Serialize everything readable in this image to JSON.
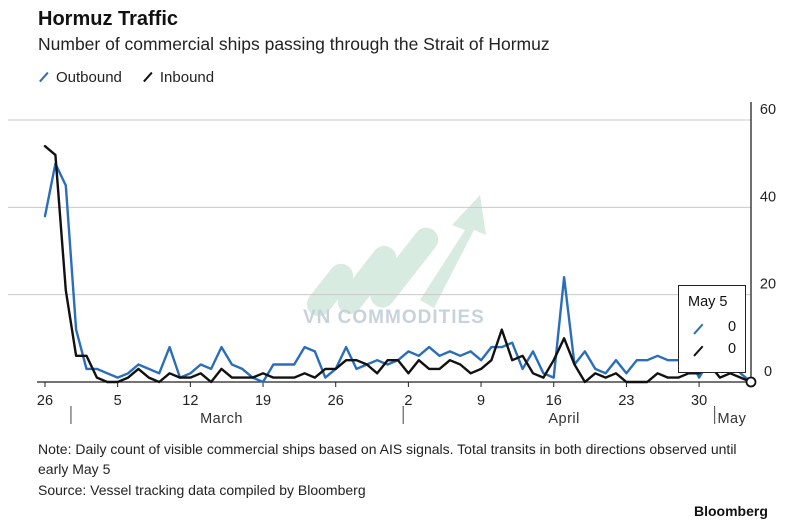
{
  "header": {
    "title": "Hormuz Traffic",
    "subtitle": "Number of commercial ships passing through the Strait of Hormuz"
  },
  "legend": [
    {
      "label": "Outbound",
      "color": "#2a6ebb"
    },
    {
      "label": "Inbound",
      "color": "#111111"
    }
  ],
  "tooltip": {
    "date": "May 5",
    "outbound_value": "0",
    "inbound_value": "0"
  },
  "footer": {
    "note": "Note: Daily count of visible commercial ships based on AIS signals. Total transits in both directions observed until early May 5",
    "source": "Source: Vessel tracking data compiled by Bloomberg",
    "brand": "Bloomberg"
  },
  "watermark": {
    "text": "VN COMMODITIES"
  },
  "chart_data": {
    "type": "line",
    "title": "Hormuz Traffic",
    "subtitle": "Number of commercial ships passing through the Strait of Hormuz",
    "x_start": "2026-02-26",
    "x_end": "2026-05-05",
    "ylim": [
      0,
      60
    ],
    "y_ticks": [
      0,
      20,
      40,
      60
    ],
    "y_axis_side": "right",
    "grid": "horizontal",
    "legend_position": "top-left",
    "x_ticks": [
      {
        "date": "2026-02-26",
        "label": "26"
      },
      {
        "date": "2026-03-05",
        "label": "5"
      },
      {
        "date": "2026-03-12",
        "label": "12"
      },
      {
        "date": "2026-03-19",
        "label": "19"
      },
      {
        "date": "2026-03-26",
        "label": "26"
      },
      {
        "date": "2026-04-02",
        "label": "2"
      },
      {
        "date": "2026-04-09",
        "label": "9"
      },
      {
        "date": "2026-04-16",
        "label": "16"
      },
      {
        "date": "2026-04-23",
        "label": "23"
      },
      {
        "date": "2026-04-30",
        "label": "30"
      }
    ],
    "month_labels": [
      {
        "date": "2026-03-15",
        "label": "March"
      },
      {
        "date": "2026-04-17",
        "label": "April"
      },
      {
        "date": "2026-05-03",
        "label": "May"
      }
    ],
    "month_separators": [
      "2026-02-28",
      "2026-04-01",
      "2026-05-01"
    ],
    "series": [
      {
        "name": "Outbound",
        "color": "#2a6ebb",
        "x": [
          "2026-02-26",
          "2026-02-27",
          "2026-02-28",
          "2026-03-01",
          "2026-03-02",
          "2026-03-03",
          "2026-03-04",
          "2026-03-05",
          "2026-03-06",
          "2026-03-07",
          "2026-03-08",
          "2026-03-09",
          "2026-03-10",
          "2026-03-11",
          "2026-03-12",
          "2026-03-13",
          "2026-03-14",
          "2026-03-15",
          "2026-03-16",
          "2026-03-17",
          "2026-03-18",
          "2026-03-19",
          "2026-03-20",
          "2026-03-21",
          "2026-03-22",
          "2026-03-23",
          "2026-03-24",
          "2026-03-25",
          "2026-03-26",
          "2026-03-27",
          "2026-03-28",
          "2026-03-29",
          "2026-03-30",
          "2026-03-31",
          "2026-04-01",
          "2026-04-02",
          "2026-04-03",
          "2026-04-04",
          "2026-04-05",
          "2026-04-06",
          "2026-04-07",
          "2026-04-08",
          "2026-04-09",
          "2026-04-10",
          "2026-04-11",
          "2026-04-12",
          "2026-04-13",
          "2026-04-14",
          "2026-04-15",
          "2026-04-16",
          "2026-04-17",
          "2026-04-18",
          "2026-04-19",
          "2026-04-20",
          "2026-04-21",
          "2026-04-22",
          "2026-04-23",
          "2026-04-24",
          "2026-04-25",
          "2026-04-26",
          "2026-04-27",
          "2026-04-28",
          "2026-04-29",
          "2026-04-30",
          "2026-05-01",
          "2026-05-02",
          "2026-05-03",
          "2026-05-04",
          "2026-05-05"
        ],
        "y": [
          38,
          50,
          45,
          12,
          3,
          3,
          2,
          1,
          2,
          4,
          3,
          2,
          8,
          1,
          2,
          4,
          3,
          8,
          4,
          3,
          1,
          0,
          4,
          4,
          4,
          8,
          7,
          1,
          3,
          8,
          3,
          4,
          5,
          4,
          5,
          7,
          6,
          8,
          6,
          7,
          6,
          7,
          5,
          8,
          8,
          9,
          3,
          7,
          2,
          1,
          24,
          4,
          7,
          3,
          2,
          5,
          2,
          5,
          5,
          6,
          5,
          5,
          6,
          1,
          5,
          3,
          5,
          2,
          0
        ]
      },
      {
        "name": "Inbound",
        "color": "#111111",
        "x": [
          "2026-02-26",
          "2026-02-27",
          "2026-02-28",
          "2026-03-01",
          "2026-03-02",
          "2026-03-03",
          "2026-03-04",
          "2026-03-05",
          "2026-03-06",
          "2026-03-07",
          "2026-03-08",
          "2026-03-09",
          "2026-03-10",
          "2026-03-11",
          "2026-03-12",
          "2026-03-13",
          "2026-03-14",
          "2026-03-15",
          "2026-03-16",
          "2026-03-17",
          "2026-03-18",
          "2026-03-19",
          "2026-03-20",
          "2026-03-21",
          "2026-03-22",
          "2026-03-23",
          "2026-03-24",
          "2026-03-25",
          "2026-03-26",
          "2026-03-27",
          "2026-03-28",
          "2026-03-29",
          "2026-03-30",
          "2026-03-31",
          "2026-04-01",
          "2026-04-02",
          "2026-04-03",
          "2026-04-04",
          "2026-04-05",
          "2026-04-06",
          "2026-04-07",
          "2026-04-08",
          "2026-04-09",
          "2026-04-10",
          "2026-04-11",
          "2026-04-12",
          "2026-04-13",
          "2026-04-14",
          "2026-04-15",
          "2026-04-16",
          "2026-04-17",
          "2026-04-18",
          "2026-04-19",
          "2026-04-20",
          "2026-04-21",
          "2026-04-22",
          "2026-04-23",
          "2026-04-24",
          "2026-04-25",
          "2026-04-26",
          "2026-04-27",
          "2026-04-28",
          "2026-04-29",
          "2026-04-30",
          "2026-05-01",
          "2026-05-02",
          "2026-05-03",
          "2026-05-04",
          "2026-05-05"
        ],
        "y": [
          54,
          52,
          21,
          6,
          6,
          1,
          0,
          0,
          1,
          3,
          1,
          0,
          2,
          1,
          1,
          2,
          0,
          3,
          1,
          1,
          1,
          2,
          1,
          1,
          1,
          2,
          1,
          3,
          3,
          5,
          5,
          4,
          2,
          5,
          5,
          2,
          5,
          3,
          3,
          5,
          4,
          2,
          3,
          5,
          12,
          5,
          6,
          2,
          1,
          5,
          10,
          4,
          0,
          2,
          1,
          2,
          0,
          0,
          0,
          2,
          1,
          1,
          2,
          2,
          4,
          1,
          2,
          1,
          0
        ]
      }
    ]
  }
}
